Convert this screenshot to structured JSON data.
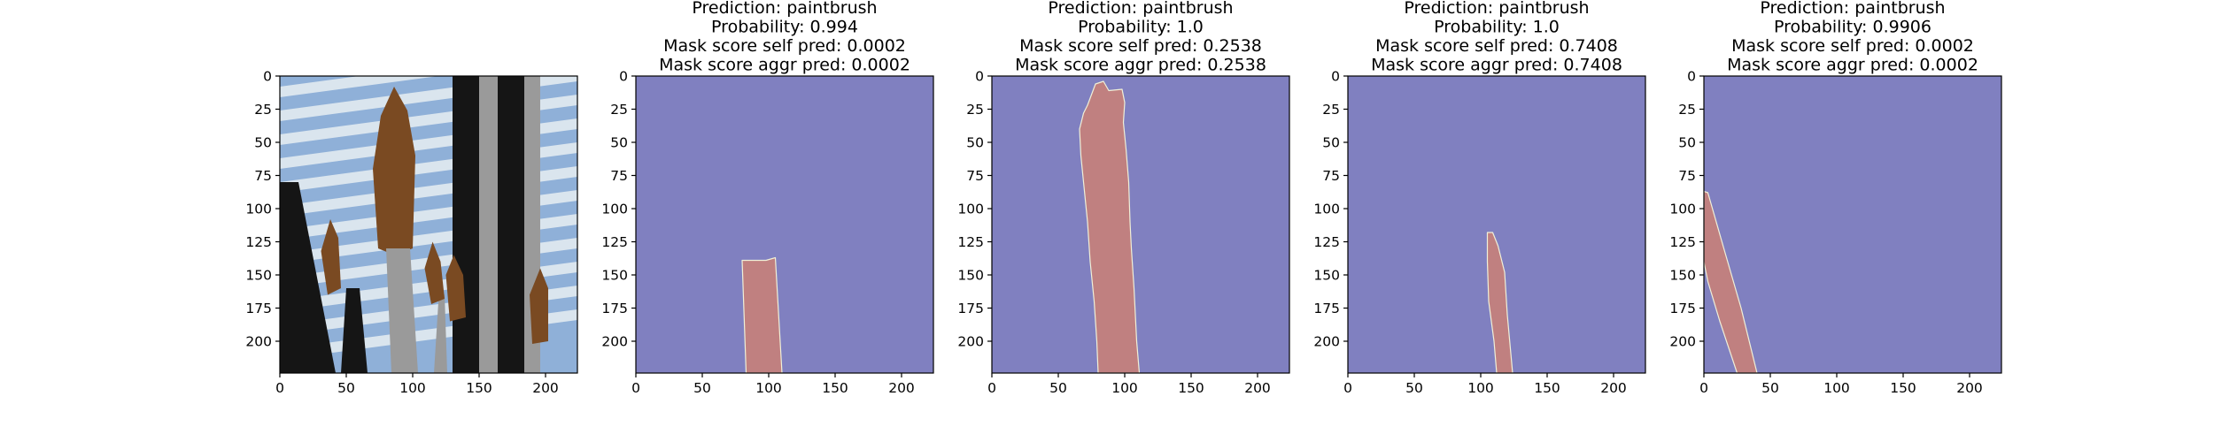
{
  "chart_data": [
    {
      "type": "image",
      "title_lines": [],
      "content": "photo",
      "xlim": [
        0,
        224
      ],
      "ylim": [
        224,
        0
      ],
      "xticks": [
        0,
        50,
        100,
        150,
        200
      ],
      "yticks": [
        0,
        25,
        50,
        75,
        100,
        125,
        150,
        175,
        200
      ]
    },
    {
      "type": "mask",
      "title_lines": [
        "Prediction: paintbrush",
        "Probability: 0.994",
        "Mask score self pred: 0.0002",
        "Mask score aggr pred: 0.0002"
      ],
      "xlim": [
        0,
        224
      ],
      "ylim": [
        224,
        0
      ],
      "xticks": [
        0,
        50,
        100,
        150,
        200
      ],
      "yticks": [
        0,
        25,
        50,
        75,
        100,
        125,
        150,
        175,
        200
      ],
      "mask_polygon": [
        [
          80,
          139
        ],
        [
          98,
          139
        ],
        [
          105,
          137
        ],
        [
          110,
          224
        ],
        [
          83,
          224
        ]
      ]
    },
    {
      "type": "mask",
      "title_lines": [
        "Prediction: paintbrush",
        "Probability: 1.0",
        "Mask score self pred: 0.2538",
        "Mask score aggr pred: 0.2538"
      ],
      "xlim": [
        0,
        224
      ],
      "ylim": [
        224,
        0
      ],
      "xticks": [
        0,
        50,
        100,
        150,
        200
      ],
      "yticks": [
        0,
        25,
        50,
        75,
        100,
        125,
        150,
        175,
        200
      ],
      "mask_polygon": [
        [
          75,
          14
        ],
        [
          78,
          6
        ],
        [
          84,
          4
        ],
        [
          88,
          11
        ],
        [
          98,
          10
        ],
        [
          100,
          20
        ],
        [
          99,
          35
        ],
        [
          101,
          55
        ],
        [
          103,
          80
        ],
        [
          104,
          110
        ],
        [
          105,
          130
        ],
        [
          107,
          160
        ],
        [
          109,
          200
        ],
        [
          111,
          224
        ],
        [
          80,
          224
        ],
        [
          79,
          200
        ],
        [
          77,
          170
        ],
        [
          74,
          140
        ],
        [
          72,
          110
        ],
        [
          70,
          90
        ],
        [
          67,
          60
        ],
        [
          66,
          40
        ],
        [
          69,
          28
        ],
        [
          72,
          22
        ]
      ]
    },
    {
      "type": "mask",
      "title_lines": [
        "Prediction: paintbrush",
        "Probability: 1.0",
        "Mask score self pred: 0.7408",
        "Mask score aggr pred: 0.7408"
      ],
      "xlim": [
        0,
        224
      ],
      "ylim": [
        224,
        0
      ],
      "xticks": [
        0,
        50,
        100,
        150,
        200
      ],
      "yticks": [
        0,
        25,
        50,
        75,
        100,
        125,
        150,
        175,
        200
      ],
      "mask_polygon": [
        [
          105,
          118
        ],
        [
          109,
          118
        ],
        [
          113,
          128
        ],
        [
          118,
          148
        ],
        [
          120,
          180
        ],
        [
          124,
          224
        ],
        [
          112,
          224
        ],
        [
          110,
          200
        ],
        [
          106,
          170
        ],
        [
          105,
          140
        ]
      ]
    },
    {
      "type": "mask",
      "title_lines": [
        "Prediction: paintbrush",
        "Probability: 0.9906",
        "Mask score self pred: 0.0002",
        "Mask score aggr pred: 0.0002"
      ],
      "xlim": [
        0,
        224
      ],
      "ylim": [
        224,
        0
      ],
      "xticks": [
        0,
        50,
        100,
        150,
        200
      ],
      "yticks": [
        0,
        25,
        50,
        75,
        100,
        125,
        150,
        175,
        200
      ],
      "mask_polygon": [
        [
          0,
          87
        ],
        [
          3,
          88
        ],
        [
          15,
          130
        ],
        [
          28,
          175
        ],
        [
          40,
          224
        ],
        [
          25,
          224
        ],
        [
          12,
          185
        ],
        [
          3,
          155
        ],
        [
          0,
          140
        ]
      ]
    }
  ],
  "colors": {
    "mask_background": "#8080c0",
    "mask_foreground": "#c08080",
    "mask_outline": "#f0f0d8",
    "photo_window": "#8fb0d8",
    "photo_slat": "#e8eef2",
    "photo_dark": "#151515",
    "photo_bristle": "#7a4a22",
    "photo_steel": "#9a9a9a"
  }
}
